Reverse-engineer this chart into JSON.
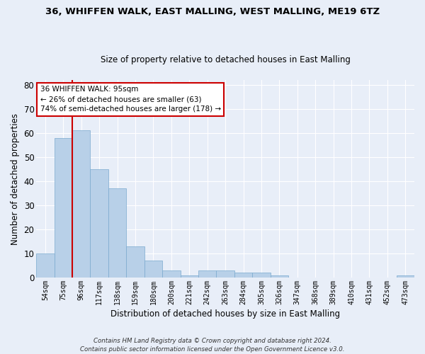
{
  "title1": "36, WHIFFEN WALK, EAST MALLING, WEST MALLING, ME19 6TZ",
  "title2": "Size of property relative to detached houses in East Malling",
  "xlabel": "Distribution of detached houses by size in East Malling",
  "ylabel": "Number of detached properties",
  "categories": [
    "54sqm",
    "75sqm",
    "96sqm",
    "117sqm",
    "138sqm",
    "159sqm",
    "180sqm",
    "200sqm",
    "221sqm",
    "242sqm",
    "263sqm",
    "284sqm",
    "305sqm",
    "326sqm",
    "347sqm",
    "368sqm",
    "389sqm",
    "410sqm",
    "431sqm",
    "452sqm",
    "473sqm"
  ],
  "values": [
    10,
    58,
    61,
    45,
    37,
    13,
    7,
    3,
    1,
    3,
    3,
    2,
    2,
    1,
    0,
    0,
    0,
    0,
    0,
    0,
    1
  ],
  "bar_color": "#b8d0e8",
  "bar_edge_color": "#7aaace",
  "bar_width": 1.0,
  "vline_x_idx": 2,
  "vline_color": "#cc0000",
  "annotation_text": "36 WHIFFEN WALK: 95sqm\n← 26% of detached houses are smaller (63)\n74% of semi-detached houses are larger (178) →",
  "annotation_box_color": "#ffffff",
  "annotation_box_edge": "#cc0000",
  "ylim": [
    0,
    82
  ],
  "yticks": [
    0,
    10,
    20,
    30,
    40,
    50,
    60,
    70,
    80
  ],
  "bg_color": "#e8eef8",
  "fig_bg_color": "#e8eef8",
  "grid_color": "#ffffff",
  "footnote": "Contains HM Land Registry data © Crown copyright and database right 2024.\nContains public sector information licensed under the Open Government Licence v3.0."
}
